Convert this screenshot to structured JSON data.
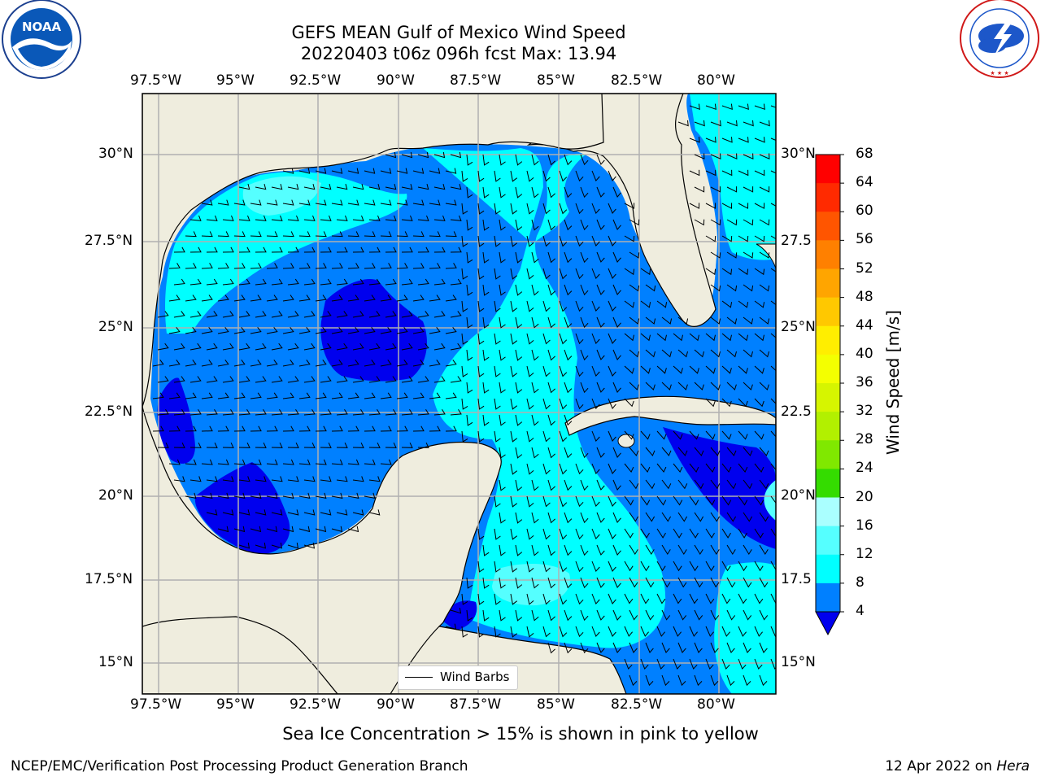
{
  "title": {
    "line1": "GEFS MEAN Gulf of Mexico Wind Speed",
    "line2": "20220403 t06z 096h fcst   Max: 13.94"
  },
  "logos": {
    "left": {
      "icon": "noaa-logo",
      "text": "NOAA",
      "ring_text": "NATIONAL OCEANIC AND ATMOSPHERIC ADMINISTRATION · U.S. DEPARTMENT OF COMMERCE"
    },
    "right": {
      "icon": "nws-logo",
      "ring_text": "NATIONAL WEATHER SERVICE"
    }
  },
  "map": {
    "lon_labels": [
      "97.5°W",
      "95°W",
      "92.5°W",
      "90°W",
      "87.5°W",
      "85°W",
      "82.5°W",
      "80°W"
    ],
    "lat_labels": [
      "30°N",
      "27.5°N",
      "25°N",
      "22.5°N",
      "20°N",
      "17.5°N",
      "15°N"
    ],
    "right_lat_labels": [
      "30°N",
      "27.5",
      "25°N",
      "22.5",
      "20°N",
      "17.5",
      "15°N"
    ],
    "legend_label": "Wind Barbs",
    "land_color": "#efedde",
    "grid": true
  },
  "colorbar": {
    "label": "Wind Speed [m/s]",
    "ticks": [
      "68",
      "64",
      "60",
      "56",
      "52",
      "48",
      "44",
      "40",
      "36",
      "32",
      "28",
      "24",
      "20",
      "16",
      "12",
      "8",
      "4"
    ],
    "colors": [
      "#ff0000",
      "#ff2a00",
      "#ff5500",
      "#ff8000",
      "#ffa500",
      "#ffc800",
      "#ffee00",
      "#f4ff00",
      "#d6f500",
      "#b2f000",
      "#80e800",
      "#34dc00",
      "#00dd22",
      "#4cf07a",
      "#aaffff",
      "#55ffff",
      "#00ffff",
      "#0080ff"
    ],
    "under_color": "#0000ee"
  },
  "caption": "Sea Ice Concentration > 15% is shown in pink to yellow",
  "footer": {
    "left": "NCEP/EMC/Verification Post Processing Product Generation Branch",
    "right_date": "12 Apr 2022 on ",
    "right_host": "Hera"
  }
}
